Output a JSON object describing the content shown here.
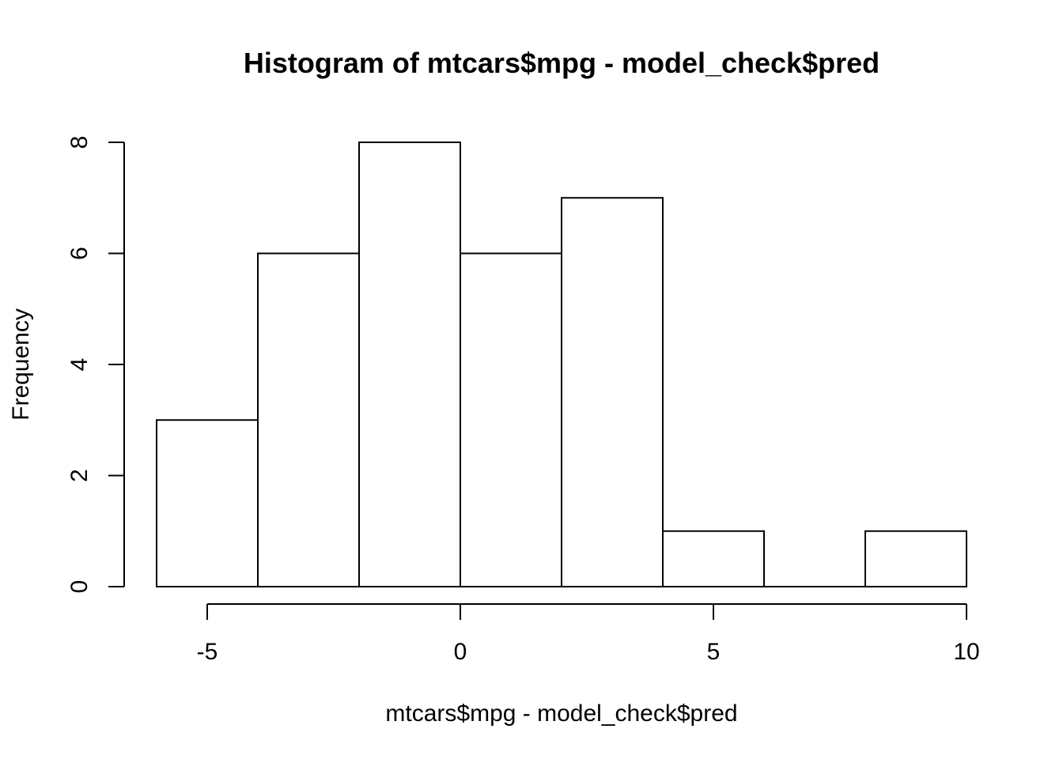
{
  "chart_data": {
    "type": "bar",
    "title": "Histogram of mtcars$mpg - model_check$pred",
    "xlabel": "mtcars$mpg - model_check$pred",
    "ylabel": "Frequency",
    "bins": [
      {
        "x0": -6,
        "x1": -4,
        "count": 3
      },
      {
        "x0": -4,
        "x1": -2,
        "count": 6
      },
      {
        "x0": -2,
        "x1": 0,
        "count": 8
      },
      {
        "x0": 0,
        "x1": 2,
        "count": 6
      },
      {
        "x0": 2,
        "x1": 4,
        "count": 7
      },
      {
        "x0": 4,
        "x1": 6,
        "count": 1
      },
      {
        "x0": 6,
        "x1": 8,
        "count": 0
      },
      {
        "x0": 8,
        "x1": 10,
        "count": 1
      }
    ],
    "x_ticks": [
      -5,
      0,
      5,
      10
    ],
    "y_ticks": [
      0,
      2,
      4,
      6,
      8
    ],
    "xlim": [
      -6,
      10
    ],
    "ylim": [
      0,
      8
    ],
    "grid": false
  }
}
